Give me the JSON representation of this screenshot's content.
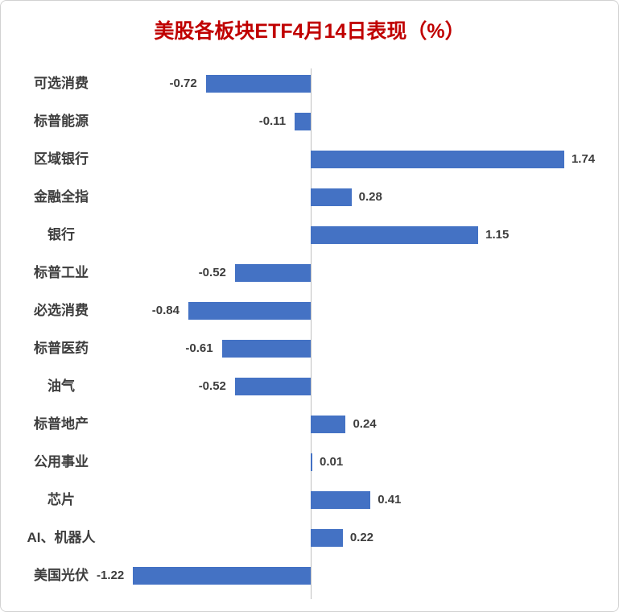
{
  "chart_data": {
    "type": "bar",
    "orientation": "horizontal",
    "title": "美股各板块ETF4月14日表现（%）",
    "categories": [
      "可选消费",
      "标普能源",
      "区域银行",
      "金融全指",
      "银行",
      "标普工业",
      "必选消费",
      "标普医药",
      "油气",
      "标普地产",
      "公用事业",
      "芯片",
      "AI、机器人",
      "美国光伏"
    ],
    "values": [
      -0.72,
      -0.11,
      1.74,
      0.28,
      1.15,
      -0.52,
      -0.84,
      -0.61,
      -0.52,
      0.24,
      0.01,
      0.41,
      0.22,
      -1.22
    ],
    "value_labels": [
      "-0.72",
      "-0.11",
      "1.74",
      "0.28",
      "1.15",
      "-0.52",
      "-0.84",
      "-0.61",
      "-0.52",
      "0.24",
      "0.01",
      "0.41",
      "0.22",
      "-1.22"
    ],
    "xlim": [
      -1.35,
      2.15
    ],
    "xlabel": "",
    "ylabel": "",
    "grid": false,
    "legend": false,
    "data_label_position": "outside-end",
    "bar_color": "#4472C4",
    "title_color": "#C00000",
    "axis_line_color": "#BFBFBF",
    "label_color": "#3D3D3D"
  }
}
